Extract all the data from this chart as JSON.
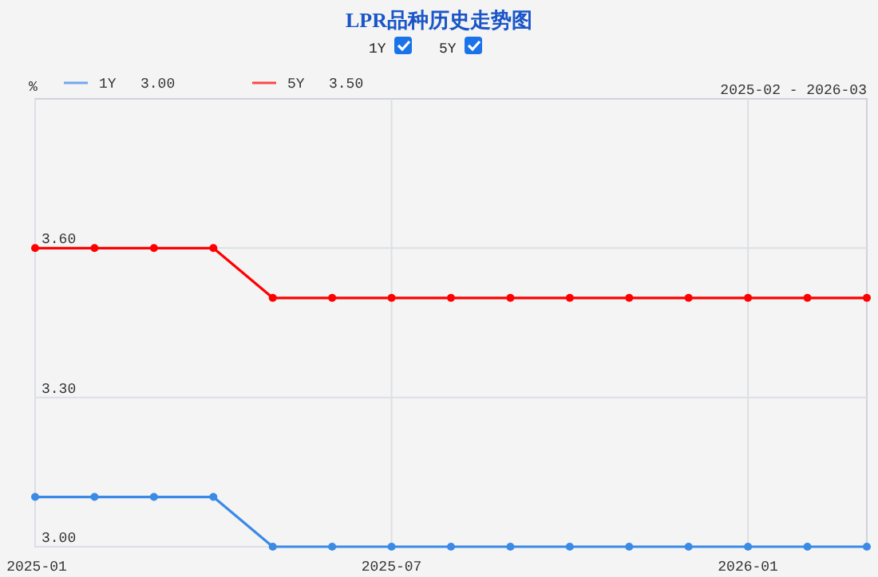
{
  "chart_data": {
    "type": "line",
    "title": "LPR品种历史走势图",
    "ylabel": "%",
    "x": [
      "2025-01",
      "2025-02",
      "2025-03",
      "2025-04",
      "2025-05",
      "2025-06",
      "2025-07",
      "2025-08",
      "2025-09",
      "2025-10",
      "2025-11",
      "2025-12",
      "2026-01",
      "2026-02",
      "2026-03"
    ],
    "series": [
      {
        "name": "1Y",
        "color": "#3b8ae6",
        "values": [
          3.1,
          3.1,
          3.1,
          3.1,
          3.0,
          3.0,
          3.0,
          3.0,
          3.0,
          3.0,
          3.0,
          3.0,
          3.0,
          3.0,
          3.0
        ]
      },
      {
        "name": "5Y",
        "color": "#ff0000",
        "values": [
          3.6,
          3.6,
          3.6,
          3.6,
          3.5,
          3.5,
          3.5,
          3.5,
          3.5,
          3.5,
          3.5,
          3.5,
          3.5,
          3.5,
          3.5
        ]
      }
    ],
    "xlim": [
      "2025-01",
      "2026-03"
    ],
    "xticks": [
      "2025-01",
      "2025-07",
      "2026-01"
    ],
    "ylim": [
      3.0,
      3.9
    ],
    "yticks": [
      {
        "value": 3.0,
        "label": "3.00"
      },
      {
        "value": 3.3,
        "label": "3.30"
      },
      {
        "value": 3.6,
        "label": "3.60"
      }
    ],
    "grid": true,
    "legend": "top left",
    "marker": "circle",
    "line_style": "solid",
    "annotations": [
      "2025-02 - 2026-03",
      "3.00",
      "3.50"
    ]
  }
}
